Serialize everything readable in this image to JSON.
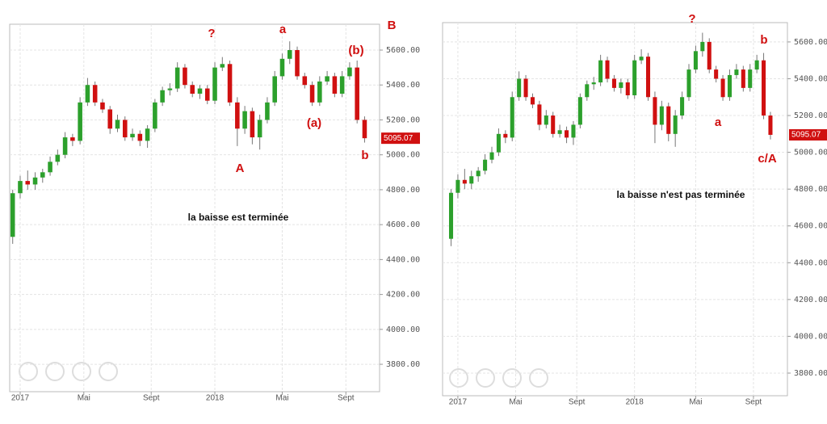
{
  "chart_data": [
    {
      "type": "candlestick",
      "x": [
        -2,
        0,
        2,
        4,
        6,
        8,
        10,
        12,
        14,
        16,
        18,
        20,
        22,
        24,
        26,
        28,
        30,
        32,
        34,
        36,
        38,
        40,
        42,
        44,
        46,
        48,
        50,
        52,
        54,
        56,
        58,
        60,
        62,
        64,
        66,
        68,
        70,
        72,
        74,
        76,
        78,
        80,
        82,
        84,
        86,
        88,
        90,
        92
      ],
      "open": [
        4530,
        4780,
        4850,
        4830,
        4870,
        4900,
        4960,
        5000,
        5100,
        5080,
        5300,
        5400,
        5300,
        5260,
        5150,
        5200,
        5100,
        5120,
        5080,
        5150,
        5300,
        5370,
        5380,
        5500,
        5400,
        5350,
        5380,
        5310,
        5500,
        5520,
        5300,
        5150,
        5250,
        5100,
        5200,
        5300,
        5450,
        5550,
        5600,
        5450,
        5400,
        5300,
        5420,
        5450,
        5350,
        5450,
        5500,
        5200
      ],
      "high": [
        4800,
        4880,
        4910,
        4900,
        4920,
        4990,
        5030,
        5130,
        5120,
        5330,
        5440,
        5420,
        5320,
        5280,
        5230,
        5220,
        5150,
        5140,
        5170,
        5320,
        5390,
        5410,
        5530,
        5520,
        5420,
        5400,
        5400,
        5530,
        5560,
        5540,
        5330,
        5280,
        5270,
        5230,
        5330,
        5480,
        5580,
        5650,
        5620,
        5470,
        5420,
        5450,
        5480,
        5470,
        5480,
        5530,
        5540,
        5220
      ],
      "low": [
        4490,
        4750,
        4800,
        4800,
        4840,
        4880,
        4940,
        4980,
        5050,
        5060,
        5280,
        5280,
        5240,
        5120,
        5130,
        5080,
        5080,
        5050,
        5040,
        5130,
        5280,
        5340,
        5360,
        5380,
        5330,
        5320,
        5290,
        5290,
        5480,
        5280,
        5050,
        5120,
        5060,
        5030,
        5180,
        5280,
        5430,
        5520,
        5430,
        5380,
        5280,
        5280,
        5400,
        5330,
        5330,
        5430,
        5180,
        5070
      ],
      "close": [
        4780,
        4850,
        4830,
        4870,
        4900,
        4960,
        5000,
        5100,
        5080,
        5300,
        5400,
        5300,
        5260,
        5150,
        5200,
        5100,
        5120,
        5080,
        5150,
        5300,
        5370,
        5380,
        5500,
        5400,
        5350,
        5380,
        5310,
        5500,
        5520,
        5300,
        5150,
        5250,
        5100,
        5200,
        5300,
        5450,
        5550,
        5600,
        5450,
        5400,
        5300,
        5420,
        5450,
        5350,
        5450,
        5500,
        5200,
        5095
      ],
      "up_color": "#2ca02c",
      "down_color": "#d01010",
      "xlim": [
        -2.8,
        96
      ],
      "xticks": [
        {
          "value": 0,
          "label": "2017"
        },
        {
          "value": 17,
          "label": "Mai"
        },
        {
          "value": 35,
          "label": "Sept"
        },
        {
          "value": 52,
          "label": "2018"
        },
        {
          "value": 70,
          "label": "Mai"
        },
        {
          "value": 87,
          "label": "Sept"
        }
      ],
      "ylim": [
        3643,
        5748
      ],
      "yticks": [
        {
          "value": 5600,
          "label": "5600.00"
        },
        {
          "value": 5400,
          "label": "5400.00"
        },
        {
          "value": 5200,
          "label": "5200.00"
        },
        {
          "value": 5000,
          "label": "5000.00"
        },
        {
          "value": 4800,
          "label": "4800.00"
        },
        {
          "value": 4600,
          "label": "4600.00"
        },
        {
          "value": 4400,
          "label": "4400.00"
        },
        {
          "value": 4200,
          "label": "4200.00"
        },
        {
          "value": 4000,
          "label": "4000.00"
        },
        {
          "value": 3800,
          "label": "3800.00"
        }
      ],
      "grid": true,
      "price_tag": "5095.07",
      "annotations": [
        "?",
        "a",
        "B",
        "(b)",
        "(a)",
        "A",
        "b"
      ],
      "note": "la baisse est terminée"
    },
    {
      "type": "candlestick",
      "x": [
        -2,
        0,
        2,
        4,
        6,
        8,
        10,
        12,
        14,
        16,
        18,
        20,
        22,
        24,
        26,
        28,
        30,
        32,
        34,
        36,
        38,
        40,
        42,
        44,
        46,
        48,
        50,
        52,
        54,
        56,
        58,
        60,
        62,
        64,
        66,
        68,
        70,
        72,
        74,
        76,
        78,
        80,
        82,
        84,
        86,
        88,
        90,
        92
      ],
      "open": [
        4530,
        4780,
        4850,
        4830,
        4870,
        4900,
        4960,
        5000,
        5100,
        5080,
        5300,
        5400,
        5300,
        5260,
        5150,
        5200,
        5100,
        5120,
        5080,
        5150,
        5300,
        5370,
        5380,
        5500,
        5400,
        5350,
        5380,
        5310,
        5500,
        5520,
        5300,
        5150,
        5250,
        5100,
        5200,
        5300,
        5450,
        5550,
        5600,
        5450,
        5400,
        5300,
        5420,
        5450,
        5350,
        5450,
        5500,
        5200
      ],
      "high": [
        4800,
        4880,
        4910,
        4900,
        4920,
        4990,
        5030,
        5130,
        5120,
        5330,
        5440,
        5420,
        5320,
        5280,
        5230,
        5220,
        5150,
        5140,
        5170,
        5320,
        5390,
        5410,
        5530,
        5520,
        5420,
        5400,
        5400,
        5530,
        5560,
        5540,
        5330,
        5280,
        5270,
        5230,
        5330,
        5480,
        5580,
        5650,
        5620,
        5470,
        5420,
        5450,
        5480,
        5470,
        5480,
        5530,
        5540,
        5220
      ],
      "low": [
        4490,
        4750,
        4800,
        4800,
        4840,
        4880,
        4940,
        4980,
        5050,
        5060,
        5280,
        5280,
        5240,
        5120,
        5130,
        5080,
        5080,
        5050,
        5040,
        5130,
        5280,
        5340,
        5360,
        5380,
        5330,
        5320,
        5290,
        5290,
        5480,
        5280,
        5050,
        5120,
        5060,
        5030,
        5180,
        5280,
        5430,
        5520,
        5430,
        5380,
        5280,
        5280,
        5400,
        5330,
        5330,
        5430,
        5180,
        5070
      ],
      "close": [
        4780,
        4850,
        4830,
        4870,
        4900,
        4960,
        5000,
        5100,
        5080,
        5300,
        5400,
        5300,
        5260,
        5150,
        5200,
        5100,
        5120,
        5080,
        5150,
        5300,
        5370,
        5380,
        5500,
        5400,
        5350,
        5380,
        5310,
        5500,
        5520,
        5300,
        5150,
        5250,
        5100,
        5200,
        5300,
        5450,
        5550,
        5600,
        5450,
        5400,
        5300,
        5420,
        5450,
        5350,
        5450,
        5500,
        5200,
        5095
      ],
      "up_color": "#2ca02c",
      "down_color": "#d01010",
      "xlim": [
        -4.5,
        97
      ],
      "xticks": [
        {
          "value": 0,
          "label": "2017"
        },
        {
          "value": 17,
          "label": "Mai"
        },
        {
          "value": 35,
          "label": "Sept"
        },
        {
          "value": 52,
          "label": "2018"
        },
        {
          "value": 70,
          "label": "Mai"
        },
        {
          "value": 87,
          "label": "Sept"
        }
      ],
      "ylim": [
        3677,
        5705
      ],
      "yticks": [
        {
          "value": 5600,
          "label": "5600.00"
        },
        {
          "value": 5400,
          "label": "5400.00"
        },
        {
          "value": 5200,
          "label": "5200.00"
        },
        {
          "value": 5000,
          "label": "5000.00"
        },
        {
          "value": 4800,
          "label": "4800.00"
        },
        {
          "value": 4600,
          "label": "4600.00"
        },
        {
          "value": 4400,
          "label": "4400.00"
        },
        {
          "value": 4200,
          "label": "4200.00"
        },
        {
          "value": 4000,
          "label": "4000.00"
        },
        {
          "value": 3800,
          "label": "3800.00"
        }
      ],
      "grid": true,
      "price_tag": "5095.07",
      "annotations": [
        "?",
        "b",
        "a",
        "c/A"
      ],
      "note": "la baisse n'est pas terminée"
    }
  ]
}
